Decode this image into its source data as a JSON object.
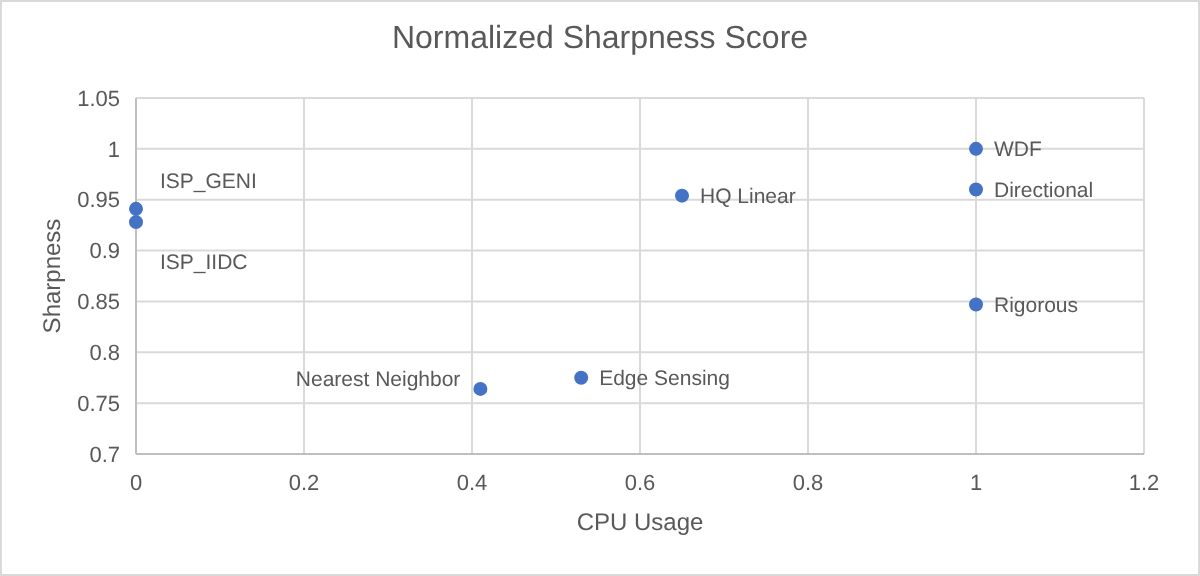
{
  "chart_data": {
    "type": "scatter",
    "title": "Normalized Sharpness Score",
    "xlabel": "CPU Usage",
    "ylabel": "Sharpness",
    "x": [
      0,
      0,
      0.41,
      0.53,
      0.65,
      1,
      1,
      1
    ],
    "values": [
      0.941,
      0.928,
      0.764,
      0.775,
      0.954,
      1.0,
      0.96,
      0.847
    ],
    "color": "#4472c4",
    "marker": "circle",
    "xlim": [
      0,
      1.2
    ],
    "xticks": [
      0,
      0.2,
      0.4,
      0.6,
      0.8,
      1,
      1.2
    ],
    "ylim": [
      0.7,
      1.05
    ],
    "yticks": [
      0.7,
      0.75,
      0.8,
      0.85,
      0.9,
      0.95,
      1,
      1.05
    ],
    "grid": true,
    "annotations": [
      {
        "text": "ISP_GENI",
        "x": 0,
        "y": 0.941
      },
      {
        "text": "ISP_IIDC",
        "x": 0,
        "y": 0.928
      },
      {
        "text": "Nearest Neighbor",
        "x": 0.41,
        "y": 0.764
      },
      {
        "text": "Edge Sensing",
        "x": 0.53,
        "y": 0.775
      },
      {
        "text": "HQ Linear",
        "x": 0.65,
        "y": 0.954
      },
      {
        "text": "WDF",
        "x": 1,
        "y": 1.0
      },
      {
        "text": "Directional",
        "x": 1,
        "y": 0.96
      },
      {
        "text": "Rigorous",
        "x": 1,
        "y": 0.847
      }
    ]
  }
}
